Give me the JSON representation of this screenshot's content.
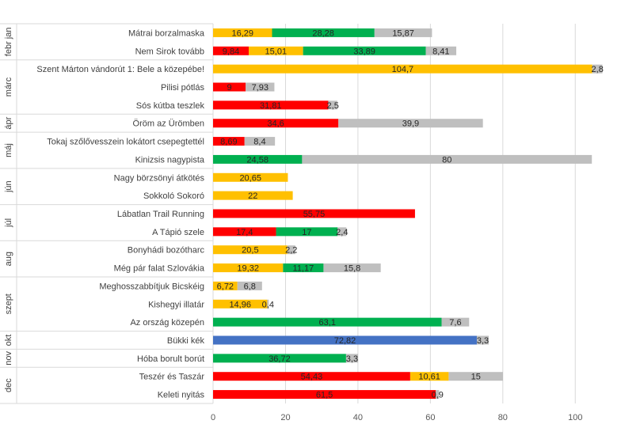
{
  "chart_data": {
    "type": "bar",
    "orientation": "horizontal",
    "stacked": true,
    "title": "",
    "xlabel": "",
    "ylabel": "",
    "xlim": [
      0,
      110
    ],
    "xticks": [
      0,
      20,
      40,
      60,
      80,
      100
    ],
    "grid": true,
    "legend": "none",
    "colors": {
      "red": "#ff0000",
      "yellow": "#ffc000",
      "green": "#00b050",
      "blue": "#4472c4",
      "gray": "#bfbfbf"
    },
    "groups": [
      {
        "month": "febr jan",
        "rows": [
          {
            "name": "Mátrai borzalmaska",
            "segments": [
              [
                "yellow",
                16.29,
                "16,29"
              ],
              [
                "green",
                28.28,
                "28,28"
              ],
              [
                "gray",
                15.87,
                "15,87"
              ]
            ]
          },
          {
            "name": "Nem Sirok tovább",
            "segments": [
              [
                "red",
                9.84,
                "9,84"
              ],
              [
                "yellow",
                15.01,
                "15,01"
              ],
              [
                "green",
                33.89,
                "33,89"
              ],
              [
                "gray",
                8.41,
                "8,41"
              ]
            ]
          }
        ]
      },
      {
        "month": "márc",
        "rows": [
          {
            "name": "Szent Márton vándorút 1: Bele a közepébe!",
            "segments": [
              [
                "yellow",
                104.7,
                "104,7"
              ],
              [
                "gray",
                2.8,
                "2,8"
              ]
            ]
          },
          {
            "name": "Pilisi pótlás",
            "segments": [
              [
                "red",
                9,
                "9"
              ],
              [
                "gray",
                7.93,
                "7,93"
              ]
            ]
          },
          {
            "name": "Sós kútba teszlek",
            "segments": [
              [
                "red",
                31.81,
                "31,81"
              ],
              [
                "gray",
                2.5,
                "2,5"
              ]
            ]
          }
        ]
      },
      {
        "month": "ápr",
        "rows": [
          {
            "name": "Öröm az Ürömben",
            "segments": [
              [
                "red",
                34.6,
                "34,6"
              ],
              [
                "gray",
                39.9,
                "39,9"
              ]
            ]
          }
        ]
      },
      {
        "month": "máj",
        "rows": [
          {
            "name": "Tokaj szőlővesszein lokátort csepegtettél",
            "segments": [
              [
                "red",
                8.69,
                "8,69"
              ],
              [
                "gray",
                8.4,
                "8,4"
              ]
            ]
          },
          {
            "name": "Kinizsis nagypista",
            "segments": [
              [
                "green",
                24.58,
                "24,58"
              ],
              [
                "gray",
                80,
                "80"
              ]
            ]
          }
        ]
      },
      {
        "month": "jún",
        "rows": [
          {
            "name": "Nagy börzsönyi átkötés",
            "segments": [
              [
                "yellow",
                20.65,
                "20,65"
              ]
            ]
          },
          {
            "name": "Sokkoló Sokoró",
            "segments": [
              [
                "yellow",
                22,
                "22"
              ]
            ]
          }
        ]
      },
      {
        "month": "júl",
        "rows": [
          {
            "name": "Lábatlan Trail Running",
            "segments": [
              [
                "red",
                55.75,
                "55,75"
              ]
            ]
          },
          {
            "name": "A Tápió szele",
            "segments": [
              [
                "red",
                17.4,
                "17,4"
              ],
              [
                "green",
                17,
                "17"
              ],
              [
                "gray",
                2.4,
                "2,4"
              ]
            ]
          }
        ]
      },
      {
        "month": "aug",
        "rows": [
          {
            "name": "Bonyhádi bozótharc",
            "segments": [
              [
                "yellow",
                20.5,
                "20,5"
              ],
              [
                "gray",
                2.2,
                "2,2"
              ]
            ]
          },
          {
            "name": "Még pár falat Szlovákia",
            "segments": [
              [
                "yellow",
                19.32,
                "19,32"
              ],
              [
                "green",
                11.17,
                "11,17"
              ],
              [
                "gray",
                15.8,
                "15,8"
              ]
            ]
          }
        ]
      },
      {
        "month": "szept",
        "rows": [
          {
            "name": "Meghosszabbítjuk Bicskéig",
            "segments": [
              [
                "yellow",
                6.72,
                "6,72"
              ],
              [
                "gray",
                6.8,
                "6,8"
              ]
            ]
          },
          {
            "name": "Kishegyi illatár",
            "segments": [
              [
                "yellow",
                14.96,
                "14,96"
              ],
              [
                "gray",
                0.4,
                "0,4"
              ]
            ]
          },
          {
            "name": "Az ország közepén",
            "segments": [
              [
                "green",
                63.1,
                "63,1"
              ],
              [
                "gray",
                7.6,
                "7,6"
              ]
            ]
          }
        ]
      },
      {
        "month": "okt",
        "rows": [
          {
            "name": "Bükki kék",
            "segments": [
              [
                "blue",
                72.82,
                "72,82"
              ],
              [
                "gray",
                3.3,
                "3,3"
              ]
            ]
          }
        ]
      },
      {
        "month": "nov",
        "rows": [
          {
            "name": "Hóba borult borút",
            "segments": [
              [
                "green",
                36.72,
                "36,72"
              ],
              [
                "gray",
                3.3,
                "3,3"
              ]
            ]
          }
        ]
      },
      {
        "month": "dec",
        "rows": [
          {
            "name": "Teszér és Taszár",
            "segments": [
              [
                "red",
                54.43,
                "54,43"
              ],
              [
                "yellow",
                10.61,
                "10,61"
              ],
              [
                "gray",
                15,
                "15"
              ]
            ]
          },
          {
            "name": "Keleti nyitás",
            "segments": [
              [
                "red",
                61.5,
                "61,5"
              ],
              [
                "gray",
                0.9,
                "0,9"
              ]
            ]
          }
        ]
      }
    ]
  }
}
